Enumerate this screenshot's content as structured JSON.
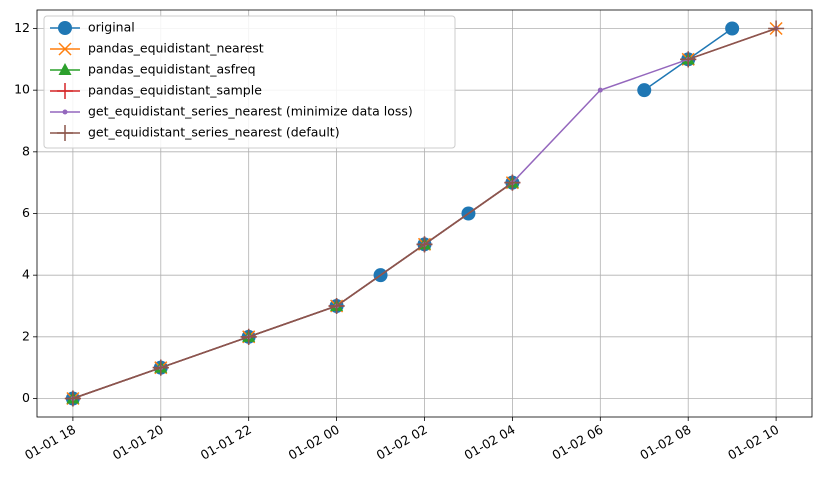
{
  "chart_data": {
    "type": "line",
    "xlim": [
      "01-01 17:11",
      "01-02 10:49"
    ],
    "xticks": [
      "01-01 18",
      "01-01 20",
      "01-01 22",
      "01-02 00",
      "01-02 02",
      "01-02 04",
      "01-02 06",
      "01-02 08",
      "01-02 10"
    ],
    "ylim": [
      -0.6,
      12.6
    ],
    "yticks": [
      0,
      2,
      4,
      6,
      8,
      10,
      12
    ],
    "grid": true,
    "legend": "upper left",
    "series": [
      {
        "name": "original",
        "color": "#1f77b4",
        "marker": "o",
        "x": [
          "01-01 18",
          "01-01 20",
          "01-01 22",
          "01-02 00",
          "01-02 01",
          "01-02 02",
          "01-02 03",
          "01-02 04",
          "01-02 06",
          "01-02 07",
          "01-02 08",
          "01-02 09"
        ],
        "values": [
          0,
          1,
          2,
          3,
          4,
          5,
          6,
          7,
          null,
          10,
          11,
          12
        ]
      },
      {
        "name": "pandas_equidistant_nearest",
        "color": "#ff7f0e",
        "marker": "x",
        "x": [
          "01-01 18",
          "01-01 20",
          "01-01 22",
          "01-02 00",
          "01-02 02",
          "01-02 04",
          "01-02 06",
          "01-02 08",
          "01-02 10"
        ],
        "values": [
          0,
          1,
          2,
          3,
          5,
          7,
          null,
          11,
          12
        ]
      },
      {
        "name": "pandas_equidistant_asfreq",
        "color": "#2ca02c",
        "marker": "^",
        "x": [
          "01-01 18",
          "01-01 20",
          "01-01 22",
          "01-02 00",
          "01-02 02",
          "01-02 04",
          "01-02 06",
          "01-02 08"
        ],
        "values": [
          0,
          1,
          2,
          3,
          5,
          7,
          null,
          11
        ]
      },
      {
        "name": "pandas_equidistant_sample",
        "color": "#d62728",
        "marker": "+",
        "x": [
          "01-01 18",
          "01-01 20",
          "01-01 22",
          "01-02 00",
          "01-02 02",
          "01-02 04",
          "01-02 06",
          "01-02 08"
        ],
        "values": [
          0,
          1,
          2,
          3,
          5,
          7,
          null,
          11
        ]
      },
      {
        "name": "get_equidistant_series_nearest (minimize data loss)",
        "color": "#9467bd",
        "marker": ".",
        "x": [
          "01-01 18",
          "01-01 20",
          "01-01 22",
          "01-02 00",
          "01-02 02",
          "01-02 04",
          "01-02 06",
          "01-02 08",
          "01-02 10"
        ],
        "values": [
          0,
          1,
          2,
          3,
          5,
          7,
          10,
          11,
          12
        ]
      },
      {
        "name": "get_equidistant_series_nearest (default)",
        "color": "#8c564b",
        "marker": "+",
        "x": [
          "01-01 18",
          "01-01 20",
          "01-01 22",
          "01-02 00",
          "01-02 02",
          "01-02 04",
          "01-02 06",
          "01-02 08",
          "01-02 10"
        ],
        "values": [
          0,
          1,
          2,
          3,
          5,
          7,
          null,
          11,
          12
        ]
      }
    ]
  }
}
